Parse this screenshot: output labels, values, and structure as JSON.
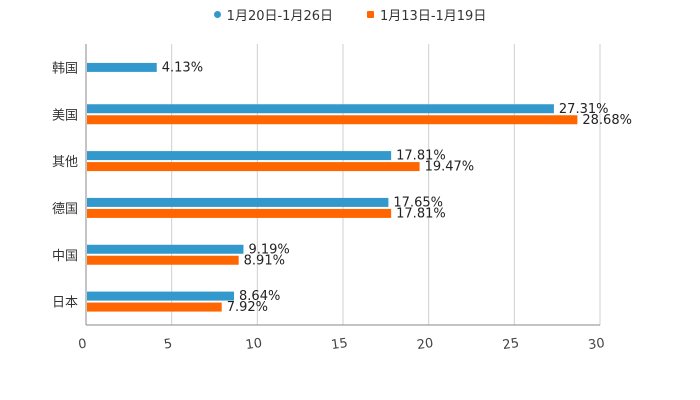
{
  "colors": {
    "week1": "#3399cc",
    "week2": "#ff6600",
    "grid": "#cfcfcf",
    "axis": "#888888",
    "text": "#222222"
  },
  "chart_data": {
    "type": "bar",
    "orientation": "horizontal",
    "categories": [
      "韩国",
      "美国",
      "其他",
      "德国",
      "中国",
      "日本"
    ],
    "series": [
      {
        "name": "1月20日-1月26日",
        "values": [
          4.13,
          27.31,
          17.81,
          17.65,
          9.19,
          8.64
        ],
        "labels": [
          "4.13%",
          "27.31%",
          "17.81%",
          "17.65%",
          "9.19%",
          "8.64%"
        ]
      },
      {
        "name": "1月13日-1月19日",
        "values": [
          null,
          28.68,
          19.47,
          17.81,
          8.91,
          7.92
        ],
        "labels": [
          "",
          "28.68%",
          "19.47%",
          "17.81%",
          "8.91%",
          "7.92%"
        ]
      }
    ],
    "xlim": [
      0,
      30
    ],
    "xticks": [
      "0",
      "5",
      "10",
      "15",
      "20",
      "25",
      "30"
    ],
    "grid": true,
    "legend": "top-center"
  }
}
